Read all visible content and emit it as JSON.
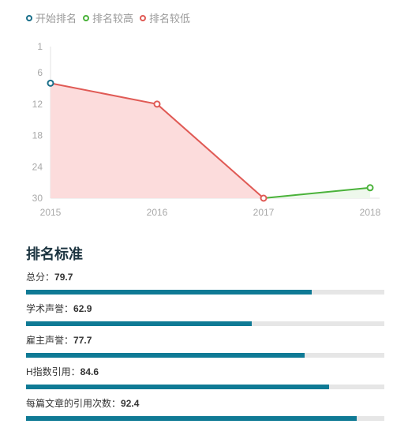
{
  "legend": [
    {
      "label": "开始排名",
      "color": "#1a6f8a"
    },
    {
      "label": "排名较高",
      "color": "#4ab23a"
    },
    {
      "label": "排名较低",
      "color": "#e05a55"
    }
  ],
  "chart_data": {
    "type": "line",
    "x": [
      "2015",
      "2016",
      "2017",
      "2018"
    ],
    "y_ticks": [
      1,
      6,
      12,
      18,
      24,
      30
    ],
    "ylim": [
      1,
      30
    ],
    "y_inverted": true,
    "series": [
      {
        "name": "开始排名",
        "points": [
          {
            "x": "2015",
            "y": 8
          }
        ],
        "color": "#1a6f8a"
      },
      {
        "name": "排名较低",
        "points": [
          {
            "x": "2015",
            "y": 8
          },
          {
            "x": "2016",
            "y": 12
          },
          {
            "x": "2017",
            "y": 30
          }
        ],
        "color": "#e05a55",
        "fill": "#fcdcdc"
      },
      {
        "name": "排名较高",
        "points": [
          {
            "x": "2017",
            "y": 30
          },
          {
            "x": "2018",
            "y": 28
          }
        ],
        "color": "#4ab23a",
        "fill": "#eef8ec"
      }
    ]
  },
  "section_title": "排名标准",
  "metrics": [
    {
      "label": "总分：",
      "value": "79.7",
      "fraction": 0.797
    },
    {
      "label": "学术声誉：",
      "value": "62.9",
      "fraction": 0.629
    },
    {
      "label": "雇主声誉：",
      "value": "77.7",
      "fraction": 0.777
    },
    {
      "label": "H指数引用：",
      "value": "84.6",
      "fraction": 0.846
    },
    {
      "label": "每篇文章的引用次数：",
      "value": "92.4",
      "fraction": 0.924
    }
  ],
  "bar_color": "#0f7a95"
}
